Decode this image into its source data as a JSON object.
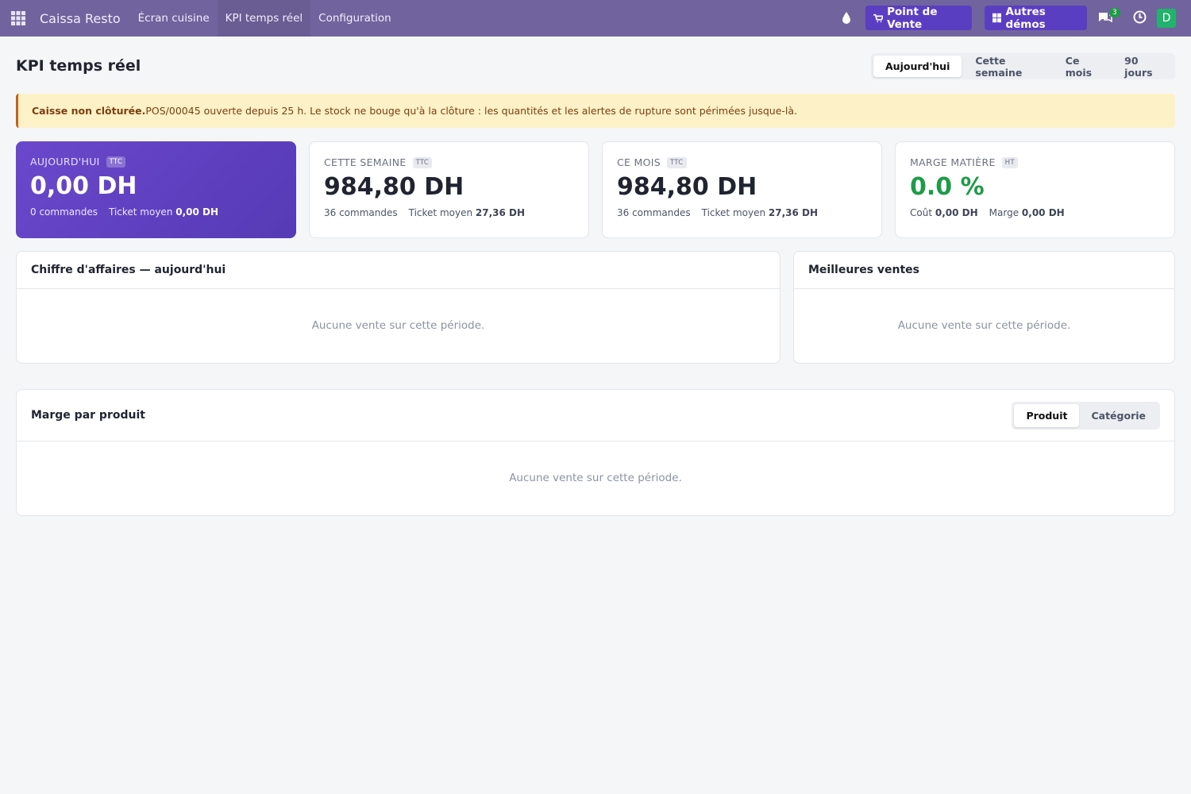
{
  "navbar": {
    "app_name": "Caissa Resto",
    "menu": [
      "Écran cuisine",
      "KPI temps réel",
      "Configuration"
    ],
    "pos_button": "Point de Vente",
    "demos_button": "Autres démos",
    "messages_count": 3,
    "avatar": "D"
  },
  "header": {
    "title": "KPI temps réel",
    "periods": [
      "Aujourd'hui",
      "Cette semaine",
      "Ce mois",
      "90 jours"
    ]
  },
  "alert": {
    "title": "Caisse non clôturée.",
    "text": "POS/00045 ouverte depuis 25 h. Le stock ne bouge qu'à la clôture : les quantités et les alertes de rupture sont périmées jusque-là."
  },
  "kpis": [
    {
      "label": "AUJOURD'HUI",
      "badge": "TTC",
      "value": "0,00 DH",
      "details": [
        {
          "label": "0 commandes"
        },
        {
          "label": "Ticket moyen",
          "value": "0,00 DH"
        }
      ]
    },
    {
      "label": "CETTE SEMAINE",
      "badge": "TTC",
      "value": "984,80 DH",
      "details": [
        {
          "label": "36 commandes"
        },
        {
          "label": "Ticket moyen",
          "value": "27,36 DH"
        }
      ]
    },
    {
      "label": "CE MOIS",
      "badge": "TTC",
      "value": "984,80 DH",
      "details": [
        {
          "label": "36 commandes"
        },
        {
          "label": "Ticket moyen",
          "value": "27,36 DH"
        }
      ]
    },
    {
      "label": "MARGE MATIÈRE",
      "badge": "HT",
      "value": "0.0 %",
      "details": [
        {
          "label": "Coût",
          "value": "0,00 DH"
        },
        {
          "label": "Marge",
          "value": "0,00 DH"
        }
      ]
    }
  ],
  "panels": {
    "revenue": {
      "title": "Chiffre d'affaires — aujourd'hui",
      "empty": "Aucune vente sur cette période."
    },
    "best_sellers": {
      "title": "Meilleures ventes",
      "empty": "Aucune vente sur cette période."
    },
    "margin": {
      "title": "Marge par produit",
      "toggle": [
        "Produit",
        "Catégorie"
      ],
      "empty": "Aucune vente sur cette période."
    }
  }
}
